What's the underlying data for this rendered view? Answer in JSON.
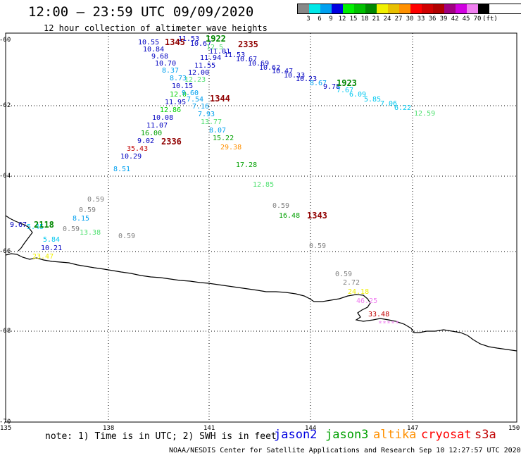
{
  "header": {
    "title": "12:00 – 23:59 UTC 09/09/2020",
    "subtitle": "12 hour collection of altimeter wave heights"
  },
  "legend": {
    "colors": [
      "#888888",
      "#00e8e8",
      "#00a0f0",
      "#0000e0",
      "#00f000",
      "#00c000",
      "#008800",
      "#f0f000",
      "#e8c000",
      "#ff9000",
      "#ff0000",
      "#d00000",
      "#b00000",
      "#a00080",
      "#d000e0",
      "#f080f0",
      "#000000"
    ],
    "labels": [
      "3",
      "6",
      "9",
      "12",
      "15",
      "18",
      "21",
      "24",
      "27",
      "30",
      "33",
      "36",
      "39",
      "42",
      "45",
      "70",
      "(ft)"
    ]
  },
  "map": {
    "axes": {
      "y_ticks": [
        "-60",
        "-62",
        "-64",
        "-66",
        "-68",
        "-70"
      ],
      "x_ticks": [
        "135",
        "138",
        "141",
        "144",
        "147",
        "150"
      ]
    },
    "labels": [
      {
        "text": "10.55",
        "color": "#0000c0"
      },
      {
        "text": "10.84",
        "color": "#0000c0"
      },
      {
        "text": "9.68",
        "color": "#0000c0"
      },
      {
        "text": "10.70",
        "color": "#0000c0"
      },
      {
        "text": "8.37",
        "color": "#00a0f0"
      },
      {
        "text": "8.73",
        "color": "#00a0f0"
      },
      {
        "text": "10.15",
        "color": "#0000c0"
      },
      {
        "text": "12.0",
        "color": "#00d000"
      },
      {
        "text": "9.60",
        "color": "#00a0f0"
      },
      {
        "text": "11.95",
        "color": "#0000c0"
      },
      {
        "text": "12.86",
        "color": "#00d000"
      },
      {
        "text": "10.08",
        "color": "#0000c0"
      },
      {
        "text": "11.07",
        "color": "#0000c0"
      },
      {
        "text": "16.00",
        "color": "#00a000"
      },
      {
        "text": "9.02",
        "color": "#0000c0"
      },
      {
        "text": "35.43",
        "color": "#c00000"
      },
      {
        "text": "10.29",
        "color": "#0000c0"
      },
      {
        "text": "8.51",
        "color": "#00a0f0"
      },
      {
        "text": "11.53",
        "color": "#0000c0"
      },
      {
        "text": "10.67",
        "color": "#0000c0"
      },
      {
        "text": "12.5",
        "color": "#50e070"
      },
      {
        "text": "11.01",
        "color": "#0000c0"
      },
      {
        "text": "11.94",
        "color": "#0000c0"
      },
      {
        "text": "11.55",
        "color": "#0000c0"
      },
      {
        "text": "12.00",
        "color": "#0000c0"
      },
      {
        "text": "12.23",
        "color": "#50e070"
      },
      {
        "text": "7.54",
        "color": "#00a0f0"
      },
      {
        "text": "7.16",
        "color": "#00a0f0"
      },
      {
        "text": "7.93",
        "color": "#00a0f0"
      },
      {
        "text": "13.77",
        "color": "#50e070"
      },
      {
        "text": "8.07",
        "color": "#00a0f0"
      },
      {
        "text": "15.22",
        "color": "#00a000"
      },
      {
        "text": "29.38",
        "color": "#ff9000"
      },
      {
        "text": "17.28",
        "color": "#00a000"
      },
      {
        "text": "12.85",
        "color": "#50e070"
      },
      {
        "text": "11.53",
        "color": "#0000c0"
      },
      {
        "text": "10.67",
        "color": "#0000c0"
      },
      {
        "text": "10.69",
        "color": "#0000c0"
      },
      {
        "text": "10.62",
        "color": "#0000c0"
      },
      {
        "text": "10.47",
        "color": "#0000c0"
      },
      {
        "text": "10.33",
        "color": "#0000c0"
      },
      {
        "text": "10.23",
        "color": "#0000c0"
      },
      {
        "text": "8.67",
        "color": "#00a0f0"
      },
      {
        "text": "9.78",
        "color": "#0000c0"
      },
      {
        "text": "7.67",
        "color": "#00c8f0"
      },
      {
        "text": "6.09",
        "color": "#00c8f0"
      },
      {
        "text": "5.85",
        "color": "#00c8f0"
      },
      {
        "text": "7.06",
        "color": "#00c8f0"
      },
      {
        "text": "6.22",
        "color": "#00c8f0"
      },
      {
        "text": "12.59",
        "color": "#50e070"
      },
      {
        "text": "0.59",
        "color": "#808080"
      },
      {
        "text": "0.59",
        "color": "#808080"
      },
      {
        "text": "8.15",
        "color": "#00a0f0"
      },
      {
        "text": "9.67",
        "color": "#0000c0"
      },
      {
        "text": "5.45",
        "color": "#00c8f0"
      },
      {
        "text": "0.59",
        "color": "#808080"
      },
      {
        "text": "13.38",
        "color": "#50e070"
      },
      {
        "text": "0.59",
        "color": "#808080"
      },
      {
        "text": "5.84",
        "color": "#00c8f0"
      },
      {
        "text": "10.21",
        "color": "#0000c0"
      },
      {
        "text": "23.47",
        "color": "#f0f000"
      },
      {
        "text": "0.59",
        "color": "#808080"
      },
      {
        "text": "16.48",
        "color": "#00a000"
      },
      {
        "text": "0.59",
        "color": "#808080"
      },
      {
        "text": "0.59",
        "color": "#808080"
      },
      {
        "text": "2.72",
        "color": "#808080"
      },
      {
        "text": "24.18",
        "color": "#f0f000"
      },
      {
        "text": "46.25",
        "color": "#f080f0"
      },
      {
        "text": "33.48",
        "color": "#c00000"
      },
      {
        "text": "*****",
        "color": "#f080f0"
      }
    ],
    "pass_times": [
      {
        "text": "1345",
        "color": "#900000"
      },
      {
        "text": "1922",
        "color": "#008800"
      },
      {
        "text": "2335",
        "color": "#900000"
      },
      {
        "text": "1344",
        "color": "#900000"
      },
      {
        "text": "2336",
        "color": "#900000"
      },
      {
        "text": "1923",
        "color": "#008800"
      },
      {
        "text": "2118",
        "color": "#008800"
      },
      {
        "text": "1343",
        "color": "#900000"
      }
    ]
  },
  "note": "note: 1) Time is in UTC; 2) SWH is in feet",
  "satellites": [
    {
      "name": "jason2",
      "color": "#0000e0"
    },
    {
      "name": "jason3",
      "color": "#00a000"
    },
    {
      "name": "altika",
      "color": "#ff9000"
    },
    {
      "name": "cryosat",
      "color": "#ff0000"
    },
    {
      "name": "s3a",
      "color": "#c00000"
    }
  ],
  "footer": "NOAA/NESDIS Center for Satellite Applications and Research   Sep 10 12:27:57 UTC 2020"
}
